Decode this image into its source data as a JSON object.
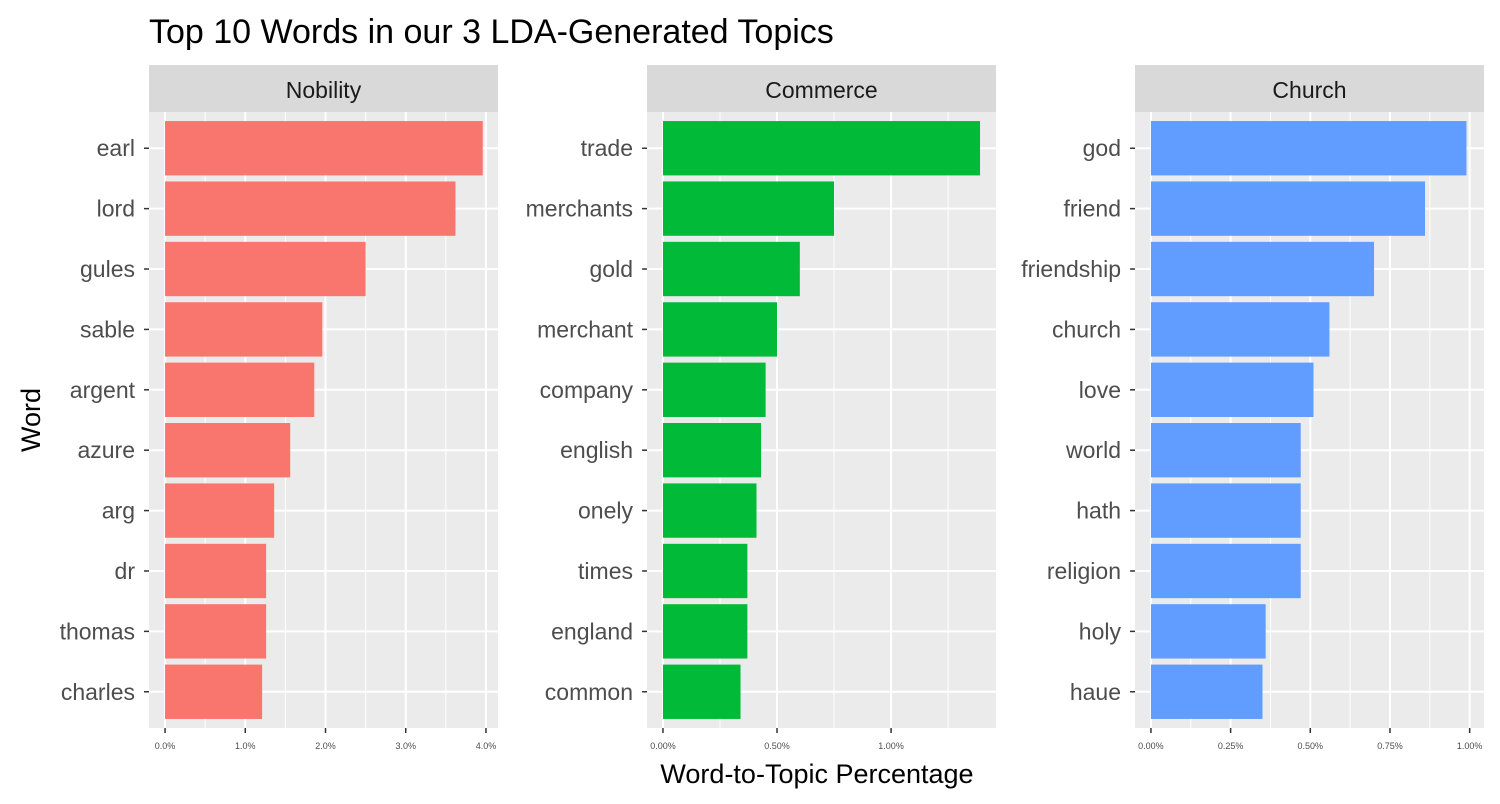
{
  "chart_data": {
    "type": "bar",
    "orientation": "horizontal",
    "title": "Top 10 Words in our 3 LDA-Generated Topics",
    "xlabel": "Word-to-Topic Percentage",
    "ylabel": "Word",
    "grid": true,
    "legend": "none",
    "facets": [
      {
        "name": "Nobility",
        "color": "#F8766D",
        "xlim": [
          -0.002,
          0.0415
        ],
        "ticks": [
          0,
          0.01,
          0.02,
          0.03,
          0.04
        ],
        "tick_labels": [
          "0.0%",
          "1.0%",
          "2.0%",
          "3.0%",
          "4.0%"
        ],
        "categories": [
          "earl",
          "lord",
          "gules",
          "sable",
          "argent",
          "azure",
          "arg",
          "dr",
          "thomas",
          "charles"
        ],
        "values": [
          0.0396,
          0.0362,
          0.025,
          0.0196,
          0.0186,
          0.0156,
          0.0136,
          0.0126,
          0.0126,
          0.0121
        ]
      },
      {
        "name": "Commerce",
        "color": "#00BA38",
        "xlim": [
          -0.0007,
          0.0146
        ],
        "ticks": [
          0,
          0.005,
          0.01
        ],
        "tick_labels": [
          "0.00%",
          "0.50%",
          "1.00%"
        ],
        "categories": [
          "trade",
          "merchants",
          "gold",
          "merchant",
          "company",
          "english",
          "onely",
          "times",
          "england",
          "common"
        ],
        "values": [
          0.0139,
          0.0075,
          0.006,
          0.005,
          0.0045,
          0.0043,
          0.0041,
          0.0037,
          0.0037,
          0.0034
        ]
      },
      {
        "name": "Church",
        "color": "#619CFF",
        "xlim": [
          -0.0005,
          0.01045
        ],
        "ticks": [
          0,
          0.0025,
          0.005,
          0.0075,
          0.01
        ],
        "tick_labels": [
          "0.00%",
          "0.25%",
          "0.50%",
          "0.75%",
          "1.00%"
        ],
        "categories": [
          "god",
          "friend",
          "friendship",
          "church",
          "love",
          "world",
          "hath",
          "religion",
          "holy",
          "haue"
        ],
        "values": [
          0.0099,
          0.0086,
          0.007,
          0.0056,
          0.0051,
          0.0047,
          0.0047,
          0.0047,
          0.0036,
          0.0035
        ]
      }
    ]
  }
}
